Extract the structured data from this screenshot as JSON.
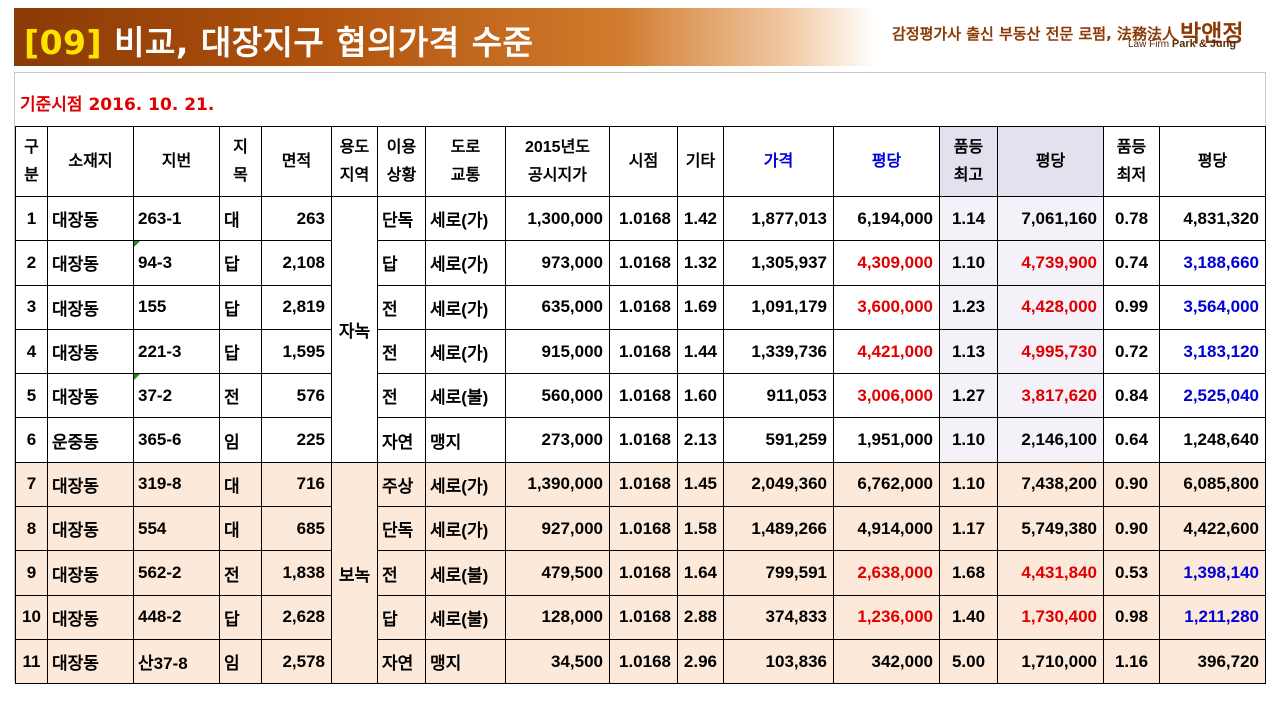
{
  "header": {
    "title_num": "[09]",
    "title_text": "비교, 대장지구 협의가격 수준",
    "firm_line": "감정평가사 출신 부동산 전문 로펌, 法務法人",
    "firm_brand": "박앤정",
    "firm_sub_prefix": "Law Firm",
    "firm_sub_name": "Park & Jung"
  },
  "date_label": "기준시점 2016. 10. 21.",
  "table": {
    "headers": {
      "no": "구\n분",
      "location": "소재지",
      "lot": "지번",
      "category": "지\n목",
      "area": "면적",
      "zoning": "용도\n지역",
      "use": "이용\n상황",
      "road": "도로\n교통",
      "official_price": "2015년도\n공시지가",
      "time_factor": "시점",
      "other_factor": "기타",
      "price": "가격",
      "per_pyeong": "평당",
      "grade_max": "품등\n최고",
      "per_pyeong_max": "평당",
      "grade_min": "품등\n최저",
      "per_pyeong_min": "평당"
    },
    "zone_groups": [
      "자녹",
      "보녹"
    ],
    "rows": [
      {
        "no": "1",
        "loc": "대장동",
        "lot": "263-1",
        "cat": "대",
        "area": "263",
        "use": "단독",
        "road": "세로(가)",
        "official": "1,300,000",
        "time": "1.0168",
        "other": "1.42",
        "price": "1,877,013",
        "pp": "6,194,000",
        "gmax": "1.14",
        "ppmax": "7,061,160",
        "gmin": "0.78",
        "ppmin": "4,831,320"
      },
      {
        "no": "2",
        "loc": "대장동",
        "lot": "94-3",
        "cat": "답",
        "area": "2,108",
        "use": "답",
        "road": "세로(가)",
        "official": "973,000",
        "time": "1.0168",
        "other": "1.32",
        "price": "1,305,937",
        "pp": "4,309,000",
        "gmax": "1.10",
        "ppmax": "4,739,900",
        "gmin": "0.74",
        "ppmin": "3,188,660"
      },
      {
        "no": "3",
        "loc": "대장동",
        "lot": "155",
        "cat": "답",
        "area": "2,819",
        "use": "전",
        "road": "세로(가)",
        "official": "635,000",
        "time": "1.0168",
        "other": "1.69",
        "price": "1,091,179",
        "pp": "3,600,000",
        "gmax": "1.23",
        "ppmax": "4,428,000",
        "gmin": "0.99",
        "ppmin": "3,564,000"
      },
      {
        "no": "4",
        "loc": "대장동",
        "lot": "221-3",
        "cat": "답",
        "area": "1,595",
        "use": "전",
        "road": "세로(가)",
        "official": "915,000",
        "time": "1.0168",
        "other": "1.44",
        "price": "1,339,736",
        "pp": "4,421,000",
        "gmax": "1.13",
        "ppmax": "4,995,730",
        "gmin": "0.72",
        "ppmin": "3,183,120"
      },
      {
        "no": "5",
        "loc": "대장동",
        "lot": "37-2",
        "cat": "전",
        "area": "576",
        "use": "전",
        "road": "세로(불)",
        "official": "560,000",
        "time": "1.0168",
        "other": "1.60",
        "price": "911,053",
        "pp": "3,006,000",
        "gmax": "1.27",
        "ppmax": "3,817,620",
        "gmin": "0.84",
        "ppmin": "2,525,040"
      },
      {
        "no": "6",
        "loc": "운중동",
        "lot": "365-6",
        "cat": "임",
        "area": "225",
        "use": "자연",
        "road": "맹지",
        "official": "273,000",
        "time": "1.0168",
        "other": "2.13",
        "price": "591,259",
        "pp": "1,951,000",
        "gmax": "1.10",
        "ppmax": "2,146,100",
        "gmin": "0.64",
        "ppmin": "1,248,640"
      },
      {
        "no": "7",
        "loc": "대장동",
        "lot": "319-8",
        "cat": "대",
        "area": "716",
        "use": "주상",
        "road": "세로(가)",
        "official": "1,390,000",
        "time": "1.0168",
        "other": "1.45",
        "price": "2,049,360",
        "pp": "6,762,000",
        "gmax": "1.10",
        "ppmax": "7,438,200",
        "gmin": "0.90",
        "ppmin": "6,085,800"
      },
      {
        "no": "8",
        "loc": "대장동",
        "lot": "554",
        "cat": "대",
        "area": "685",
        "use": "단독",
        "road": "세로(가)",
        "official": "927,000",
        "time": "1.0168",
        "other": "1.58",
        "price": "1,489,266",
        "pp": "4,914,000",
        "gmax": "1.17",
        "ppmax": "5,749,380",
        "gmin": "0.90",
        "ppmin": "4,422,600"
      },
      {
        "no": "9",
        "loc": "대장동",
        "lot": "562-2",
        "cat": "전",
        "area": "1,838",
        "use": "전",
        "road": "세로(불)",
        "official": "479,500",
        "time": "1.0168",
        "other": "1.64",
        "price": "799,591",
        "pp": "2,638,000",
        "gmax": "1.68",
        "ppmax": "4,431,840",
        "gmin": "0.53",
        "ppmin": "1,398,140"
      },
      {
        "no": "10",
        "loc": "대장동",
        "lot": "448-2",
        "cat": "답",
        "area": "2,628",
        "use": "답",
        "road": "세로(불)",
        "official": "128,000",
        "time": "1.0168",
        "other": "2.88",
        "price": "374,833",
        "pp": "1,236,000",
        "gmax": "1.40",
        "ppmax": "1,730,400",
        "gmin": "0.98",
        "ppmin": "1,211,280"
      },
      {
        "no": "11",
        "loc": "대장동",
        "lot": "산37-8",
        "cat": "임",
        "area": "2,578",
        "use": "자연",
        "road": "맹지",
        "official": "34,500",
        "time": "1.0168",
        "other": "2.96",
        "price": "103,836",
        "pp": "342,000",
        "gmax": "5.00",
        "ppmax": "1,710,000",
        "gmin": "1.16",
        "ppmin": "396,720"
      }
    ]
  },
  "colors": {
    "title_gradient_start": "#8a3a06",
    "title_number": "#ffe200",
    "highlight_red": "#e00000",
    "highlight_blue": "#0000d8",
    "peach_row": "#fde9d9",
    "lavender_header": "#e5e0ee"
  }
}
